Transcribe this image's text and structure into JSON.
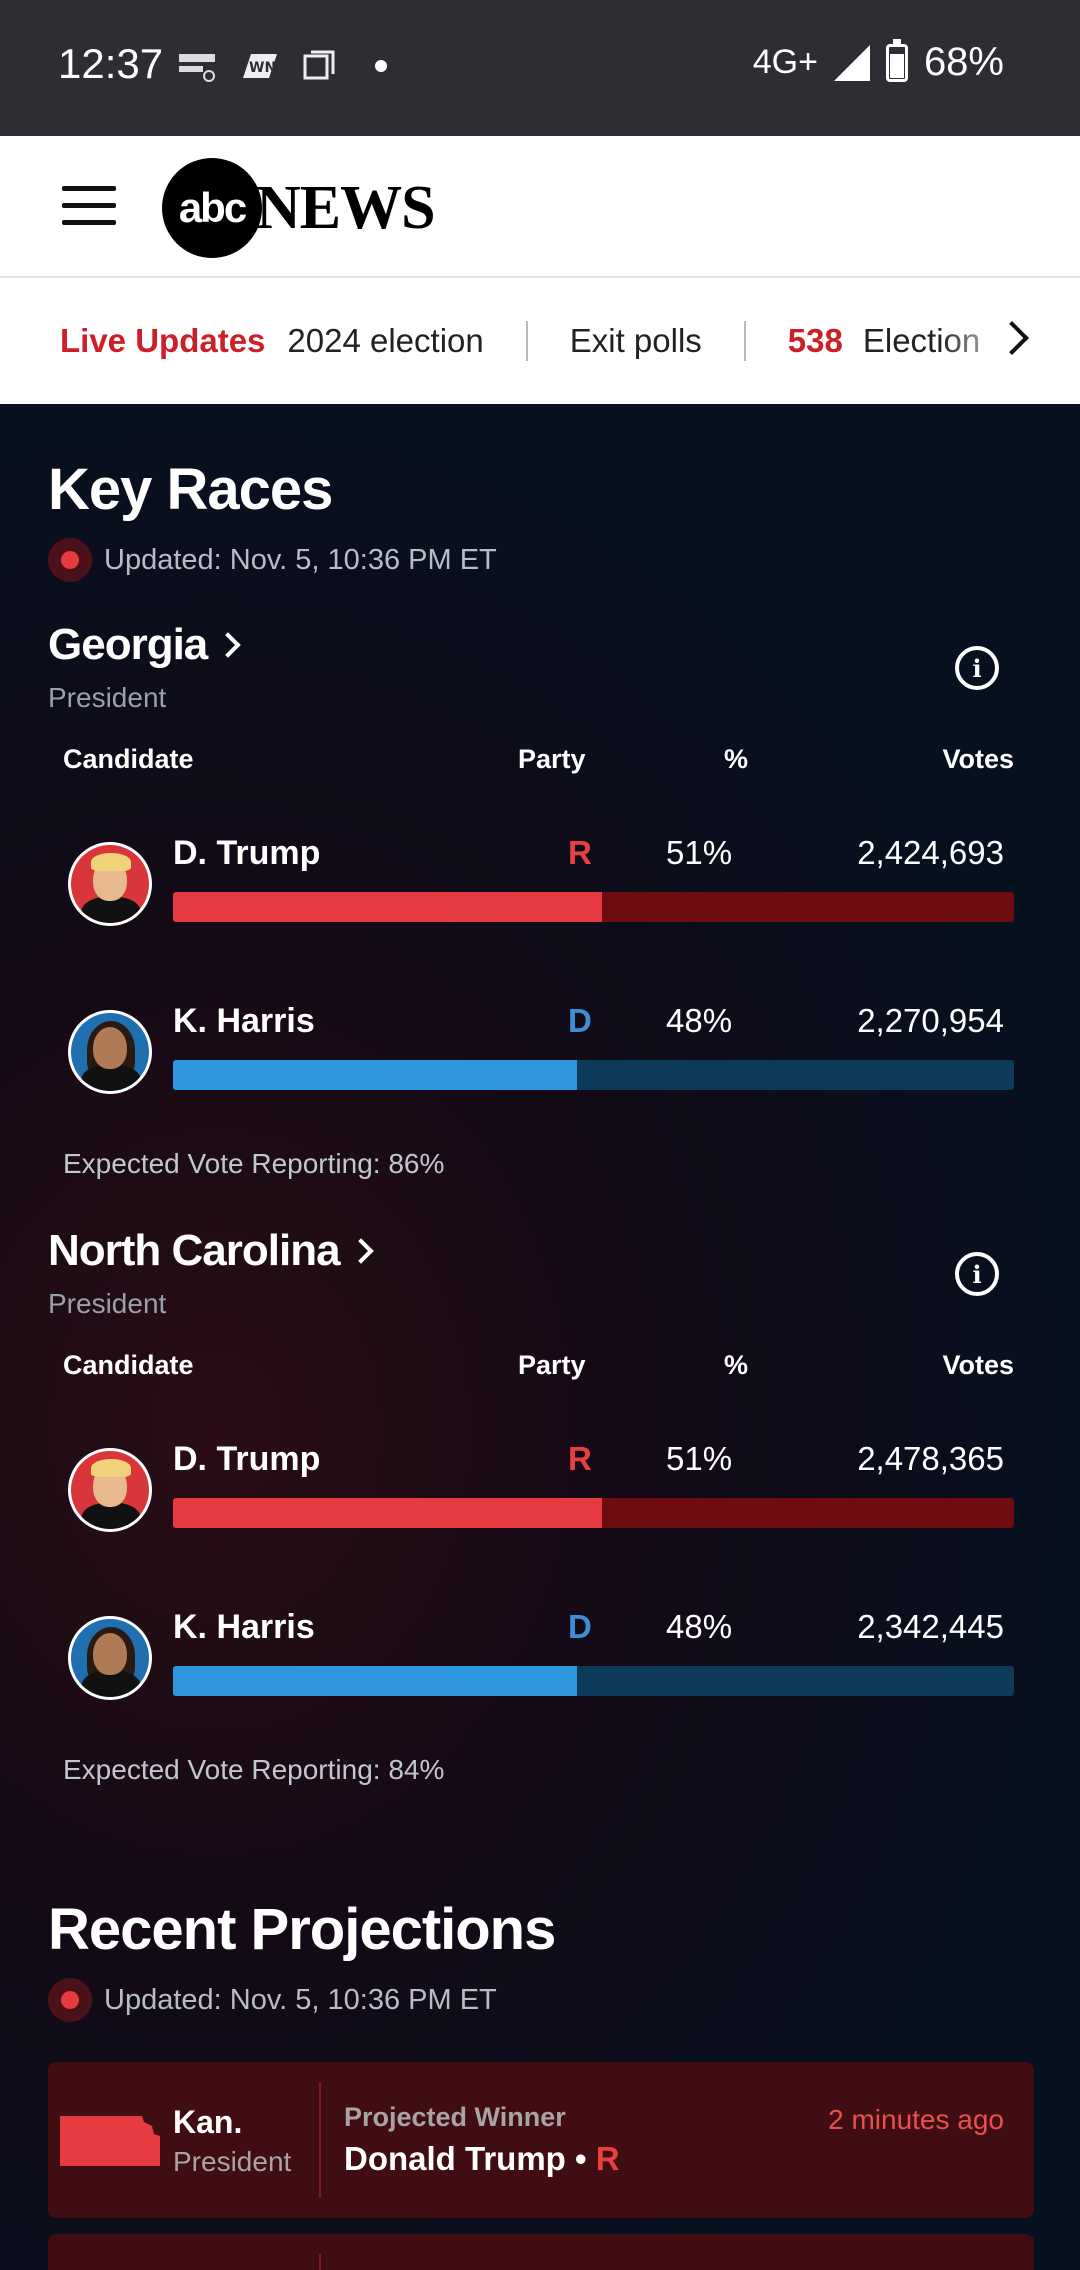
{
  "status_bar": {
    "time": "12:37",
    "network": "4G+",
    "battery": "68%",
    "icons": [
      "japanet-icon",
      "wnn-icon",
      "screen-icon",
      "dot-icon",
      "signal-icon",
      "battery-icon"
    ]
  },
  "header": {
    "logo_abc": "abc",
    "logo_news": "NEWS",
    "menu_icon": "hamburger-icon"
  },
  "nav": {
    "live": "Live Updates",
    "items": [
      "2024 election",
      "Exit polls"
    ],
    "brand": "538",
    "last_partial": "Election"
  },
  "key_races": {
    "title": "Key Races",
    "updated": "Updated: Nov. 5, 10:36 PM ET",
    "columns": {
      "candidate": "Candidate",
      "party": "Party",
      "pct": "%",
      "votes": "Votes"
    },
    "races": [
      {
        "state": "Georgia",
        "office": "President",
        "reporting": "Expected Vote Reporting: 86%",
        "candidates": [
          {
            "name": "D. Trump",
            "party": "R",
            "pct": "51%",
            "votes": "2,424,693",
            "share": 0.51
          },
          {
            "name": "K. Harris",
            "party": "D",
            "pct": "48%",
            "votes": "2,270,954",
            "share": 0.48
          }
        ]
      },
      {
        "state": "North Carolina",
        "office": "President",
        "reporting": "Expected Vote Reporting: 84%",
        "candidates": [
          {
            "name": "D. Trump",
            "party": "R",
            "pct": "51%",
            "votes": "2,478,365",
            "share": 0.51
          },
          {
            "name": "K. Harris",
            "party": "D",
            "pct": "48%",
            "votes": "2,342,445",
            "share": 0.48
          }
        ]
      }
    ]
  },
  "projections": {
    "title": "Recent Projections",
    "updated": "Updated: Nov. 5, 10:36 PM ET",
    "items": [
      {
        "state": "Kan.",
        "office": "President",
        "label": "Projected Winner",
        "winner": "Donald Trump",
        "party": "R",
        "time": "2 minutes ago",
        "color": "#e53a3f"
      }
    ]
  },
  "colors": {
    "republican": "#e53a3f",
    "democrat": "#2f97de",
    "brand_red": "#cc1f27"
  }
}
